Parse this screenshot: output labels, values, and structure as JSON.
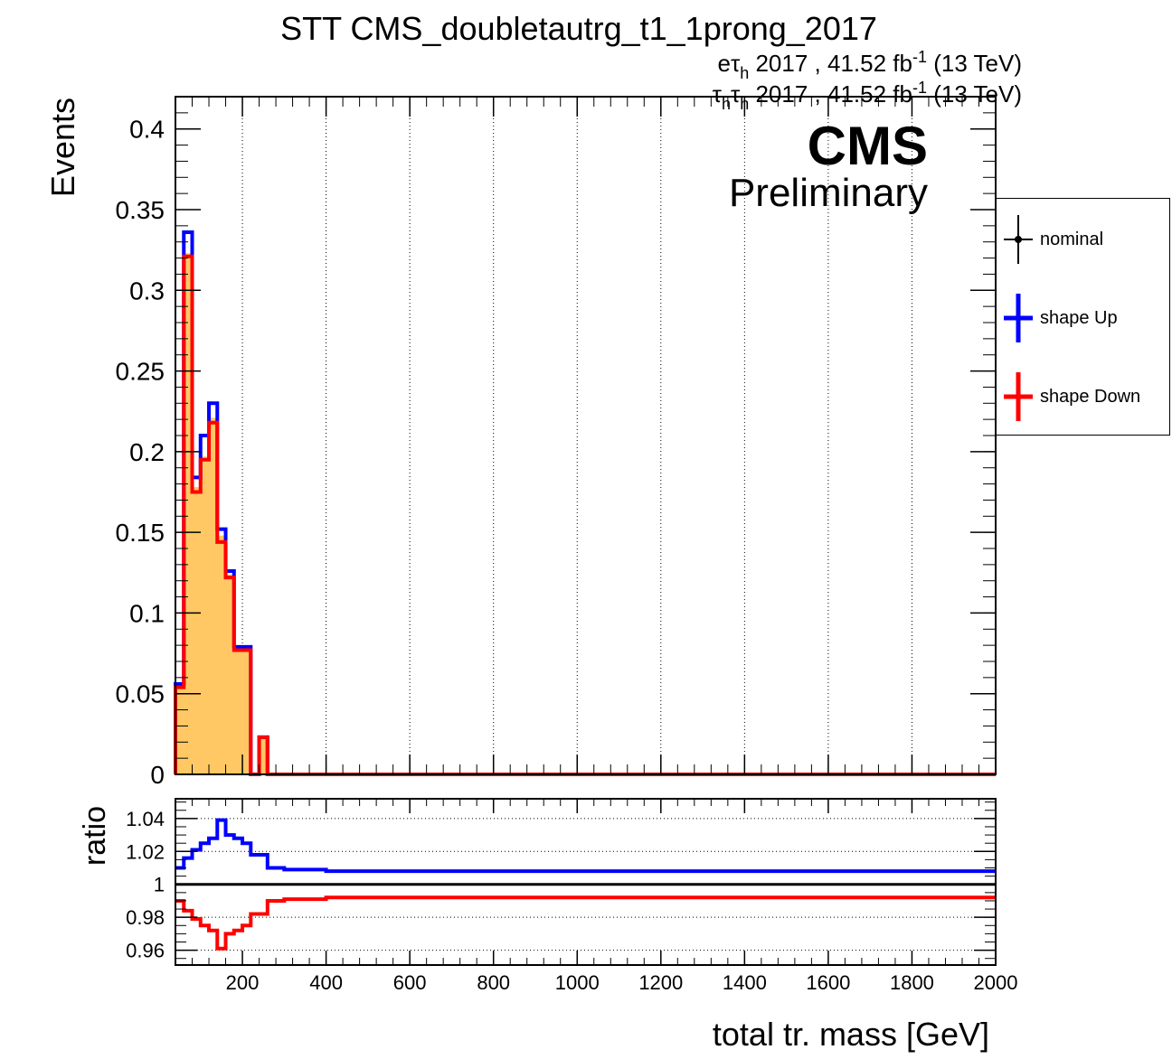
{
  "chart_data": [
    {
      "type": "histogram",
      "title": "STT CMS_doubletautrg_t1_1prong_2017",
      "lumi_lines": [
        {
          "channel": "eτ",
          "sub": "h",
          "rest": " 2017 , 41.52 fb",
          "sup": "-1",
          "tail": " (13 TeV)"
        },
        {
          "channel": "τ",
          "sub": "h",
          "channel2": "τ",
          "sub2": "h",
          "rest": " 2017 , 41.52 fb",
          "sup": "-1",
          "tail": " (13 TeV)"
        }
      ],
      "cms_label": "CMS",
      "cms_sublabel": "Preliminary",
      "ylabel": "Events",
      "xlim": [
        40,
        2000
      ],
      "ylim": [
        0,
        0.42
      ],
      "y_ticks": [
        "0",
        "0.05",
        "0.1",
        "0.15",
        "0.2",
        "0.25",
        "0.3",
        "0.35",
        "0.4"
      ],
      "grid_x": [
        200,
        400,
        600,
        800,
        1000,
        1200,
        1400,
        1600,
        1800
      ],
      "bin_edges": [
        40,
        60,
        80,
        100,
        120,
        140,
        160,
        180,
        200,
        220,
        240,
        260,
        280,
        300,
        320,
        400,
        500,
        2000
      ],
      "series": [
        {
          "name": "nominal",
          "values": [
            0.055,
            0.323,
            0.178,
            0.197,
            0.221,
            0.148,
            0.124,
            0.078,
            0.078,
            0,
            0.023,
            0,
            0,
            0,
            0,
            0,
            0
          ],
          "color": "#ffc865",
          "style": "fill"
        },
        {
          "name": "shape Up",
          "values": [
            0.056,
            0.336,
            0.184,
            0.21,
            0.23,
            0.152,
            0.126,
            0.079,
            0.079,
            0,
            0.023,
            0,
            0,
            0,
            0,
            0,
            0
          ],
          "color": "#0000ff",
          "style": "step"
        },
        {
          "name": "shape Down",
          "values": [
            0.054,
            0.321,
            0.175,
            0.195,
            0.218,
            0.144,
            0.122,
            0.077,
            0.077,
            0,
            0.023,
            0,
            0,
            0,
            0,
            0,
            0
          ],
          "color": "#ff0000",
          "style": "step"
        }
      ],
      "legend": {
        "placement": "right",
        "entries": [
          {
            "label": "nominal",
            "color": "#000000",
            "marker": "point"
          },
          {
            "label": "shape Up",
            "color": "#0000ff",
            "marker": "line"
          },
          {
            "label": "shape Down",
            "color": "#ff0000",
            "marker": "line"
          }
        ]
      }
    },
    {
      "type": "line",
      "ylabel": "ratio",
      "xlabel": "total tr. mass [GeV]",
      "xlim": [
        40,
        2000
      ],
      "ylim": [
        0.951,
        1.052
      ],
      "y_ticks": [
        "0.96",
        "0.98",
        "1",
        "1.02",
        "1.04"
      ],
      "x_ticks": [
        "200",
        "400",
        "600",
        "800",
        "1000",
        "1200",
        "1400",
        "1600",
        "1800",
        "2000"
      ],
      "reference_line": 1,
      "step_edges": [
        40,
        60,
        80,
        100,
        120,
        140,
        160,
        180,
        200,
        220,
        240,
        260,
        280,
        300,
        320,
        400,
        500,
        2000
      ],
      "series": [
        {
          "name": "shape Up",
          "values": [
            1.01,
            1.016,
            1.021,
            1.025,
            1.028,
            1.039,
            1.03,
            1.028,
            1.025,
            1.018,
            1.018,
            1.01,
            1.01,
            1.009,
            1.009,
            1.008,
            1.008
          ],
          "color": "#0000ff"
        },
        {
          "name": "shape Down",
          "values": [
            0.99,
            0.984,
            0.979,
            0.975,
            0.972,
            0.961,
            0.97,
            0.972,
            0.975,
            0.982,
            0.982,
            0.99,
            0.99,
            0.991,
            0.991,
            0.992,
            0.992
          ],
          "color": "#ff0000"
        }
      ]
    }
  ]
}
